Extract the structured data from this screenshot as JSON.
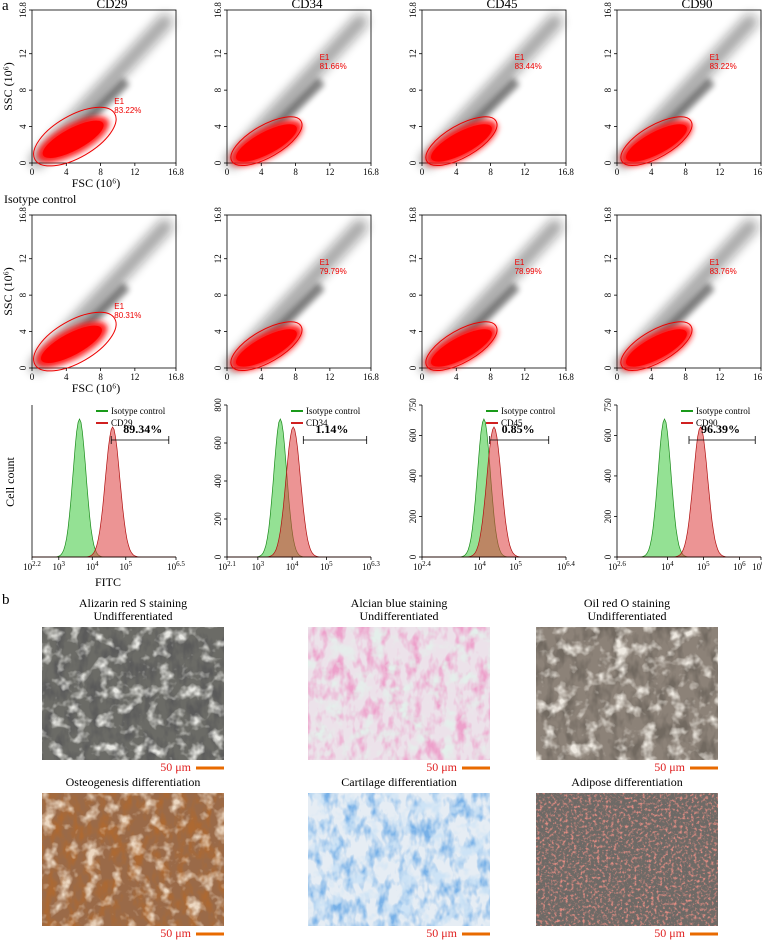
{
  "panel_a": {
    "label": "a",
    "markers": [
      "CD29",
      "CD34",
      "CD45",
      "CD90"
    ],
    "isotype_label": "Isotype control",
    "scatter": {
      "xlabel": "FSC (10⁶)",
      "ylabel": "SSC (10⁶)",
      "xlim": [
        0,
        16.8
      ],
      "ylim": [
        0,
        16.8
      ],
      "xticks": [
        0,
        4,
        8,
        12,
        16.8
      ],
      "yticks": [
        0,
        4,
        8,
        12,
        16.8
      ],
      "gate": "E1",
      "stained": [
        "83.22%",
        "81.66%",
        "83.44%",
        "83.22%"
      ],
      "isotype": [
        "80.31%",
        "79.79%",
        "78.99%",
        "83.76%"
      ]
    },
    "histogram": {
      "xlabel": "FITC",
      "ylabel": "Cell count",
      "panels": [
        {
          "legend": [
            "Isotype control",
            "CD29"
          ],
          "percent": "89.34%",
          "xlim": [
            2.2,
            6.5
          ],
          "xticks": [
            {
              "value": 2.2,
              "label": "10"
            },
            {
              "value": 3,
              "label": "10"
            },
            {
              "value": 4,
              "label": "10"
            },
            {
              "value": 5,
              "label": "10"
            },
            {
              "value": 6.5,
              "label": "10"
            }
          ]
        },
        {
          "legend": [
            "Isotype control",
            "CD34"
          ],
          "percent": "1.14%",
          "xlim": [
            2.1,
            6.3
          ],
          "ylim": [
            0,
            800
          ],
          "yticks": [
            0,
            200,
            400,
            600,
            800
          ],
          "xticks": [
            {
              "value": 2.1,
              "label": "10"
            },
            {
              "value": 3,
              "label": "10"
            },
            {
              "value": 4,
              "label": "10"
            },
            {
              "value": 5,
              "label": "10"
            },
            {
              "value": 6.3,
              "label": "10"
            }
          ]
        },
        {
          "legend": [
            "Isotype control",
            "CD45"
          ],
          "percent": "0.85%",
          "xlim": [
            2.4,
            6.4
          ],
          "ylim": [
            0,
            750
          ],
          "yticks": [
            0,
            200,
            400,
            600,
            750
          ],
          "xticks": [
            {
              "value": 2.4,
              "label": "10"
            },
            {
              "value": 4,
              "label": "10"
            },
            {
              "value": 5,
              "label": "10"
            },
            {
              "value": 6.4,
              "label": "10"
            }
          ]
        },
        {
          "legend": [
            "Isotype control",
            "CD90"
          ],
          "percent": "96.39%",
          "xlim": [
            2.6,
            6.6
          ],
          "ylim": [
            0,
            750
          ],
          "yticks": [
            0,
            200,
            400,
            600,
            750
          ],
          "xticks": [
            {
              "value": 2.6,
              "label": "10"
            },
            {
              "value": 4,
              "label": "10"
            },
            {
              "value": 5,
              "label": "10"
            },
            {
              "value": 6,
              "label": "10"
            },
            {
              "value": 6.6,
              "label": "10"
            }
          ]
        }
      ]
    }
  },
  "panel_b": {
    "label": "b",
    "images": [
      {
        "title": [
          "Alizarin red S staining",
          "Undifferentiated"
        ],
        "scale": "50 μm"
      },
      {
        "title": [
          "Alcian blue staining",
          "Undifferentiated"
        ],
        "scale": "50 μm"
      },
      {
        "title": [
          "Oil red O staining",
          "Undifferentiated"
        ],
        "scale": "50 μm"
      },
      {
        "title": [
          "Osteogenesis differentiation"
        ],
        "scale": "50 μm"
      },
      {
        "title": [
          "Cartilage differentiation"
        ],
        "scale": "50 μm"
      },
      {
        "title": [
          "Adipose differentiation"
        ],
        "scale": "50 μm"
      }
    ]
  }
}
